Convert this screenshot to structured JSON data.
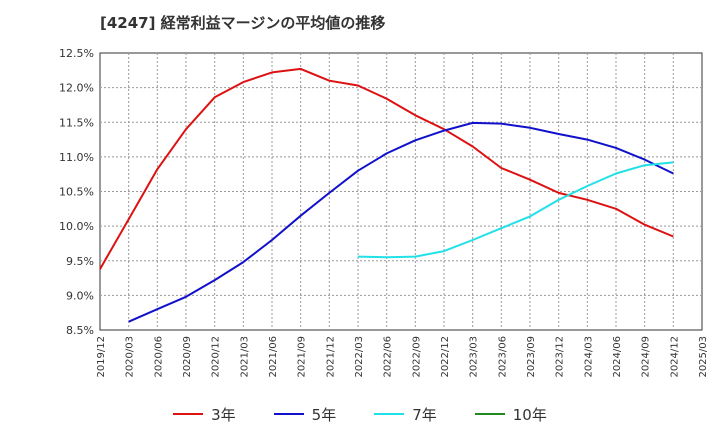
{
  "chart_data": {
    "type": "line",
    "title": "[4247]  経常利益マージンの平均値の推移",
    "xlabel": "",
    "ylabel": "",
    "ylim": [
      8.5,
      12.5
    ],
    "y_ticks": [
      "8.5%",
      "9.0%",
      "9.5%",
      "10.0%",
      "10.5%",
      "11.0%",
      "11.5%",
      "12.0%",
      "12.5%"
    ],
    "x_ticks": [
      "2019/12",
      "2020/03",
      "2020/06",
      "2020/09",
      "2020/12",
      "2021/03",
      "2021/06",
      "2021/09",
      "2021/12",
      "2022/03",
      "2022/06",
      "2022/09",
      "2022/12",
      "2023/03",
      "2023/06",
      "2023/09",
      "2023/12",
      "2024/03",
      "2024/06",
      "2024/09",
      "2024/12",
      "2025/03"
    ],
    "grid": true,
    "legend_position": "bottom",
    "series": [
      {
        "name": "3年",
        "color": "#dd1111",
        "points": [
          [
            "2019/12",
            9.38
          ],
          [
            "2020/03",
            10.1
          ],
          [
            "2020/06",
            10.82
          ],
          [
            "2020/09",
            11.4
          ],
          [
            "2020/12",
            11.86
          ],
          [
            "2021/03",
            12.08
          ],
          [
            "2021/06",
            12.22
          ],
          [
            "2021/09",
            12.27
          ],
          [
            "2021/12",
            12.1
          ],
          [
            "2022/03",
            12.03
          ],
          [
            "2022/06",
            11.84
          ],
          [
            "2022/09",
            11.6
          ],
          [
            "2022/12",
            11.4
          ],
          [
            "2023/03",
            11.15
          ],
          [
            "2023/06",
            10.84
          ],
          [
            "2023/09",
            10.67
          ],
          [
            "2023/12",
            10.48
          ],
          [
            "2024/03",
            10.38
          ],
          [
            "2024/06",
            10.25
          ],
          [
            "2024/09",
            10.02
          ],
          [
            "2024/12",
            9.85
          ]
        ]
      },
      {
        "name": "5年",
        "color": "#1111cc",
        "points": [
          [
            "2020/03",
            8.62
          ],
          [
            "2020/06",
            8.8
          ],
          [
            "2020/09",
            8.98
          ],
          [
            "2020/12",
            9.22
          ],
          [
            "2021/03",
            9.48
          ],
          [
            "2021/06",
            9.8
          ],
          [
            "2021/09",
            10.15
          ],
          [
            "2021/12",
            10.48
          ],
          [
            "2022/03",
            10.8
          ],
          [
            "2022/06",
            11.05
          ],
          [
            "2022/09",
            11.24
          ],
          [
            "2022/12",
            11.38
          ],
          [
            "2023/03",
            11.49
          ],
          [
            "2023/06",
            11.48
          ],
          [
            "2023/09",
            11.42
          ],
          [
            "2023/12",
            11.33
          ],
          [
            "2024/03",
            11.25
          ],
          [
            "2024/06",
            11.13
          ],
          [
            "2024/09",
            10.96
          ],
          [
            "2024/12",
            10.76
          ]
        ]
      },
      {
        "name": "7年",
        "color": "#22e0e8",
        "points": [
          [
            "2022/03",
            9.56
          ],
          [
            "2022/06",
            9.55
          ],
          [
            "2022/09",
            9.56
          ],
          [
            "2022/12",
            9.64
          ],
          [
            "2023/03",
            9.8
          ],
          [
            "2023/06",
            9.97
          ],
          [
            "2023/09",
            10.14
          ],
          [
            "2023/12",
            10.38
          ],
          [
            "2024/03",
            10.58
          ],
          [
            "2024/06",
            10.76
          ],
          [
            "2024/09",
            10.88
          ],
          [
            "2024/12",
            10.92
          ]
        ]
      },
      {
        "name": "10年",
        "color": "#228822",
        "points": []
      }
    ]
  }
}
